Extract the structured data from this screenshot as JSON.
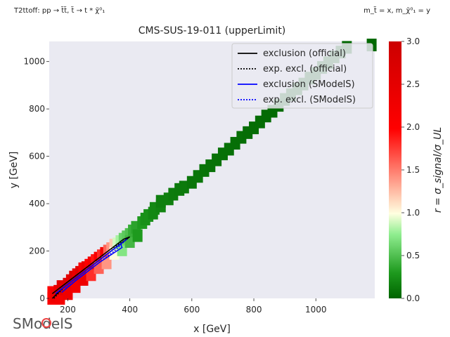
{
  "header": {
    "process_label": "T2ttoff: pp → t̃t̃, t̃ → t * χ̃⁰₁",
    "mass_label": "m_t̃ = x, m_χ̃⁰₁ = y"
  },
  "logo": {
    "text": "SModelS"
  },
  "chart_data": {
    "type": "heatmap",
    "title": "CMS-SUS-19-011 (upperLimit)",
    "xlabel": "x [GeV]",
    "ylabel": "y [GeV]",
    "xlim": [
      140,
      1190
    ],
    "ylim": [
      0,
      1085
    ],
    "xticks": [
      200,
      400,
      600,
      800,
      1000
    ],
    "yticks": [
      0,
      200,
      400,
      600,
      800,
      1000
    ],
    "grid": false,
    "colorbar": {
      "label": "r = σ_signal/σ_UL",
      "range": [
        0.0,
        3.0
      ],
      "ticks": [
        0.0,
        0.5,
        1.0,
        1.5,
        2.0,
        2.5,
        3.0
      ],
      "tick_labels": [
        "0.0",
        "0.5",
        "1.0",
        "1.5",
        "2.0",
        "2.5",
        "3.0"
      ],
      "colormap": [
        "#006400",
        "#1e9a1e",
        "#90ee90",
        "#ffffe0",
        "#ff0000",
        "#cc0000"
      ]
    },
    "legend": {
      "placement": "top-right",
      "entries": [
        {
          "label": "exclusion (official)",
          "color": "#000000",
          "style": "solid"
        },
        {
          "label": "exp. excl. (official)",
          "color": "#000000",
          "style": "dotted"
        },
        {
          "label": "exclusion (SModelS)",
          "color": "#0000ff",
          "style": "solid"
        },
        {
          "label": "exp. excl. (SModelS)",
          "color": "#0000ff",
          "style": "dotted"
        }
      ]
    },
    "band": {
      "description_of_points": "r values along the diagonal band: x=stop mass, y=LSP mass",
      "points": [
        [
          150,
          0,
          2.1
        ],
        [
          150,
          25,
          2.0
        ],
        [
          160,
          10,
          2.3
        ],
        [
          170,
          30,
          2.4
        ],
        [
          175,
          0,
          2.2
        ],
        [
          180,
          50,
          2.6
        ],
        [
          190,
          40,
          2.5
        ],
        [
          200,
          60,
          2.6
        ],
        [
          200,
          20,
          2.3
        ],
        [
          210,
          75,
          2.5
        ],
        [
          220,
          90,
          2.7
        ],
        [
          225,
          50,
          2.2
        ],
        [
          230,
          100,
          2.4
        ],
        [
          240,
          110,
          2.6
        ],
        [
          250,
          80,
          2.3
        ],
        [
          250,
          125,
          2.1
        ],
        [
          260,
          130,
          2.4
        ],
        [
          270,
          140,
          2.0
        ],
        [
          275,
          100,
          1.8
        ],
        [
          280,
          150,
          2.2
        ],
        [
          290,
          160,
          1.9
        ],
        [
          300,
          170,
          2.1
        ],
        [
          300,
          130,
          1.6
        ],
        [
          310,
          180,
          1.8
        ],
        [
          320,
          190,
          2.2
        ],
        [
          325,
          150,
          1.4
        ],
        [
          330,
          200,
          1.6
        ],
        [
          340,
          210,
          1.4
        ],
        [
          350,
          225,
          1.2
        ],
        [
          350,
          190,
          1.0
        ],
        [
          360,
          230,
          0.9
        ],
        [
          370,
          240,
          0.8
        ],
        [
          375,
          205,
          0.7
        ],
        [
          380,
          250,
          0.6
        ],
        [
          390,
          260,
          0.55
        ],
        [
          400,
          270,
          0.5
        ],
        [
          400,
          240,
          0.45
        ],
        [
          410,
          285,
          0.4
        ],
        [
          420,
          300,
          0.35
        ],
        [
          425,
          265,
          0.3
        ],
        [
          440,
          320,
          0.3
        ],
        [
          450,
          335,
          0.25
        ],
        [
          460,
          350,
          0.25
        ],
        [
          475,
          360,
          0.2
        ],
        [
          480,
          380,
          0.2
        ],
        [
          500,
          390,
          0.18
        ],
        [
          500,
          410,
          0.15
        ],
        [
          525,
          420,
          0.15
        ],
        [
          540,
          440,
          0.13
        ],
        [
          560,
          460,
          0.12
        ],
        [
          575,
          470,
          0.12
        ],
        [
          600,
          490,
          0.1
        ],
        [
          620,
          515,
          0.1
        ],
        [
          640,
          540,
          0.09
        ],
        [
          660,
          560,
          0.08
        ],
        [
          680,
          585,
          0.08
        ],
        [
          700,
          610,
          0.07
        ],
        [
          720,
          630,
          0.07
        ],
        [
          740,
          655,
          0.06
        ],
        [
          760,
          680,
          0.06
        ],
        [
          780,
          700,
          0.05
        ],
        [
          800,
          720,
          0.05
        ],
        [
          820,
          745,
          0.05
        ],
        [
          840,
          770,
          0.04
        ],
        [
          860,
          790,
          0.04
        ],
        [
          880,
          815,
          0.04
        ],
        [
          900,
          840,
          0.03
        ],
        [
          920,
          860,
          0.03
        ],
        [
          940,
          885,
          0.03
        ],
        [
          960,
          905,
          0.03
        ],
        [
          980,
          930,
          0.02
        ],
        [
          1000,
          950,
          0.02
        ],
        [
          1020,
          975,
          0.02
        ],
        [
          1040,
          995,
          0.02
        ],
        [
          1060,
          1020,
          0.02
        ],
        [
          1080,
          1040,
          0.02
        ],
        [
          1100,
          1060,
          0.02
        ],
        [
          1180,
          1070,
          0.02
        ]
      ]
    },
    "contours": {
      "exclusion_official": [
        [
          150,
          0
        ],
        [
          180,
          40
        ],
        [
          250,
          110
        ],
        [
          320,
          180
        ],
        [
          380,
          240
        ],
        [
          400,
          260
        ],
        [
          380,
          250
        ],
        [
          300,
          170
        ],
        [
          210,
          80
        ],
        [
          150,
          20
        ]
      ],
      "exp_excl_official": [
        [
          155,
          0
        ],
        [
          190,
          50
        ],
        [
          260,
          120
        ],
        [
          330,
          190
        ],
        [
          395,
          255
        ],
        [
          330,
          200
        ],
        [
          240,
          110
        ],
        [
          170,
          40
        ]
      ],
      "exclusion_smodels": [
        [
          160,
          20
        ],
        [
          200,
          60
        ],
        [
          260,
          120
        ],
        [
          320,
          180
        ],
        [
          370,
          230
        ],
        [
          375,
          215
        ],
        [
          300,
          150
        ],
        [
          230,
          80
        ],
        [
          180,
          25
        ]
      ],
      "exp_excl_smodels": [
        [
          170,
          30
        ],
        [
          220,
          80
        ],
        [
          280,
          140
        ],
        [
          340,
          200
        ],
        [
          390,
          250
        ],
        [
          350,
          200
        ],
        [
          260,
          110
        ],
        [
          190,
          40
        ]
      ]
    }
  }
}
